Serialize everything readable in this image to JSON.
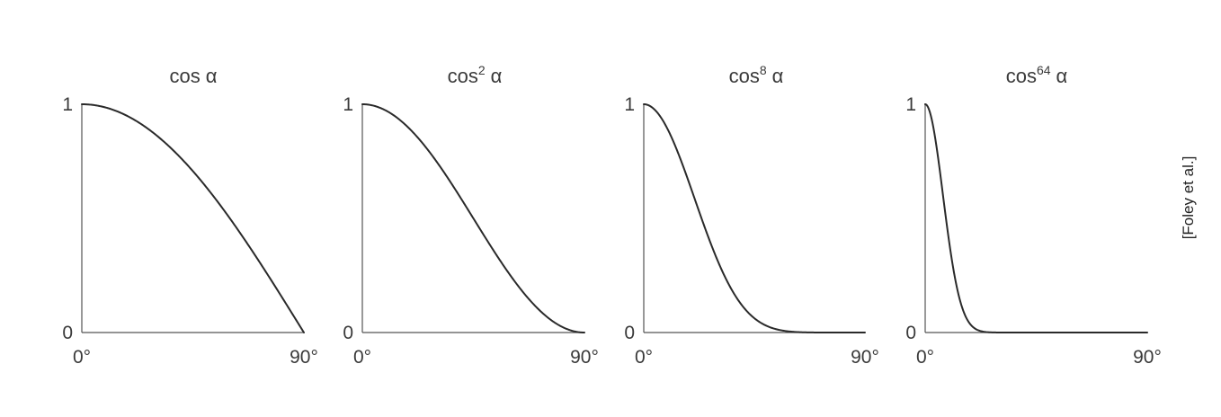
{
  "credit": "[Foley et al.]",
  "colors": {
    "curve": "#2a2a2a",
    "axis": "#555555",
    "text": "#3a3a3a"
  },
  "chart_data": [
    {
      "type": "line",
      "title_base": "cos",
      "title_exponent": "",
      "title_symbol": "α",
      "exponent": 1,
      "x_tick_labels": [
        "0°",
        "90°"
      ],
      "y_tick_labels": [
        "0",
        "1"
      ],
      "xlim": [
        0,
        90
      ],
      "ylim": [
        0,
        1
      ],
      "grid": false,
      "legend": "none",
      "x": [
        0,
        15,
        30,
        45,
        60,
        75,
        90
      ],
      "y": [
        1,
        0.966,
        0.866,
        0.707,
        0.5,
        0.259,
        0
      ]
    },
    {
      "type": "line",
      "title_base": "cos",
      "title_exponent": "2",
      "title_symbol": "α",
      "exponent": 2,
      "x_tick_labels": [
        "0°",
        "90°"
      ],
      "y_tick_labels": [
        "0",
        "1"
      ],
      "xlim": [
        0,
        90
      ],
      "ylim": [
        0,
        1
      ],
      "grid": false,
      "legend": "none",
      "x": [
        0,
        15,
        30,
        45,
        60,
        75,
        90
      ],
      "y": [
        1,
        0.933,
        0.75,
        0.5,
        0.25,
        0.067,
        0
      ]
    },
    {
      "type": "line",
      "title_base": "cos",
      "title_exponent": "8",
      "title_symbol": "α",
      "exponent": 8,
      "x_tick_labels": [
        "0°",
        "90°"
      ],
      "y_tick_labels": [
        "0",
        "1"
      ],
      "xlim": [
        0,
        90
      ],
      "ylim": [
        0,
        1
      ],
      "grid": false,
      "legend": "none",
      "x": [
        0,
        15,
        30,
        45,
        60,
        75,
        90
      ],
      "y": [
        1,
        0.758,
        0.316,
        0.063,
        0.004,
        0,
        0
      ]
    },
    {
      "type": "line",
      "title_base": "cos",
      "title_exponent": "64",
      "title_symbol": "α",
      "exponent": 64,
      "x_tick_labels": [
        "0°",
        "90°"
      ],
      "y_tick_labels": [
        "0",
        "1"
      ],
      "xlim": [
        0,
        90
      ],
      "ylim": [
        0,
        1
      ],
      "grid": false,
      "legend": "none",
      "x": [
        0,
        5,
        10,
        15,
        20,
        30,
        90
      ],
      "y": [
        1,
        0.784,
        0.377,
        0.109,
        0.019,
        0,
        0
      ]
    }
  ]
}
